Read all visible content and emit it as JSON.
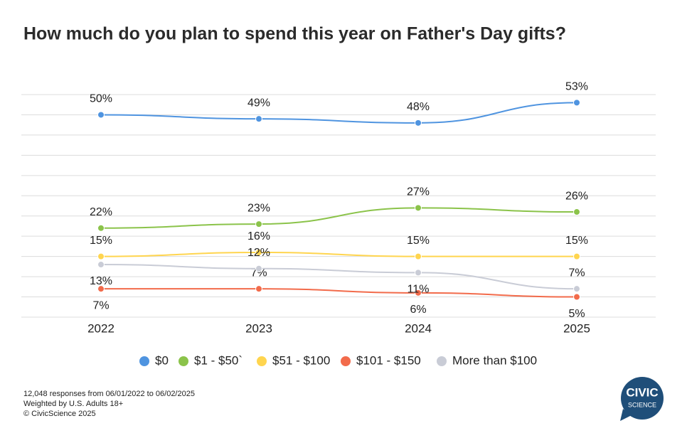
{
  "chart_data": {
    "type": "line",
    "title": "How much do you plan to spend this year on Father's Day gifts?",
    "categories": [
      "2022",
      "2023",
      "2024",
      "2025"
    ],
    "series": [
      {
        "name": "$0",
        "color": "#4f94e0",
        "values": [
          50,
          49,
          48,
          53
        ],
        "value_labels": [
          "50%",
          "49%",
          "48%",
          "53%"
        ]
      },
      {
        "name": "$1 - $50`",
        "color": "#8bc34a",
        "values": [
          22,
          23,
          27,
          26
        ],
        "value_labels": [
          "22%",
          "23%",
          "27%",
          "26%"
        ]
      },
      {
        "name": "$51 - $100",
        "color": "#ffd54f",
        "values": [
          15,
          16,
          15,
          15
        ],
        "value_labels": [
          "15%",
          "16%",
          "15%",
          "15%"
        ]
      },
      {
        "name": "$101 - $150",
        "color": "#f26b4b",
        "values": [
          7,
          7,
          6,
          5
        ],
        "value_labels": [
          "7%",
          "7%",
          "6%",
          "5%"
        ]
      },
      {
        "name": "More than $100",
        "color": "#c9ccd6",
        "values": [
          13,
          12,
          11,
          7
        ],
        "value_labels": [
          "13%",
          "12%",
          "11%",
          "7%"
        ]
      }
    ],
    "ylim": [
      0,
      55
    ],
    "yticks": [
      0,
      5,
      10,
      15,
      20,
      25,
      30,
      35,
      40,
      45,
      50,
      55
    ],
    "grid": true,
    "legend": "bottom",
    "footnotes": [
      "12,048 responses from 06/01/2022 to 06/02/2025",
      "Weighted by U.S. Adults 18+",
      "© CivicScience 2025"
    ],
    "logo": [
      "CIVIC",
      "SCIENCE"
    ]
  }
}
